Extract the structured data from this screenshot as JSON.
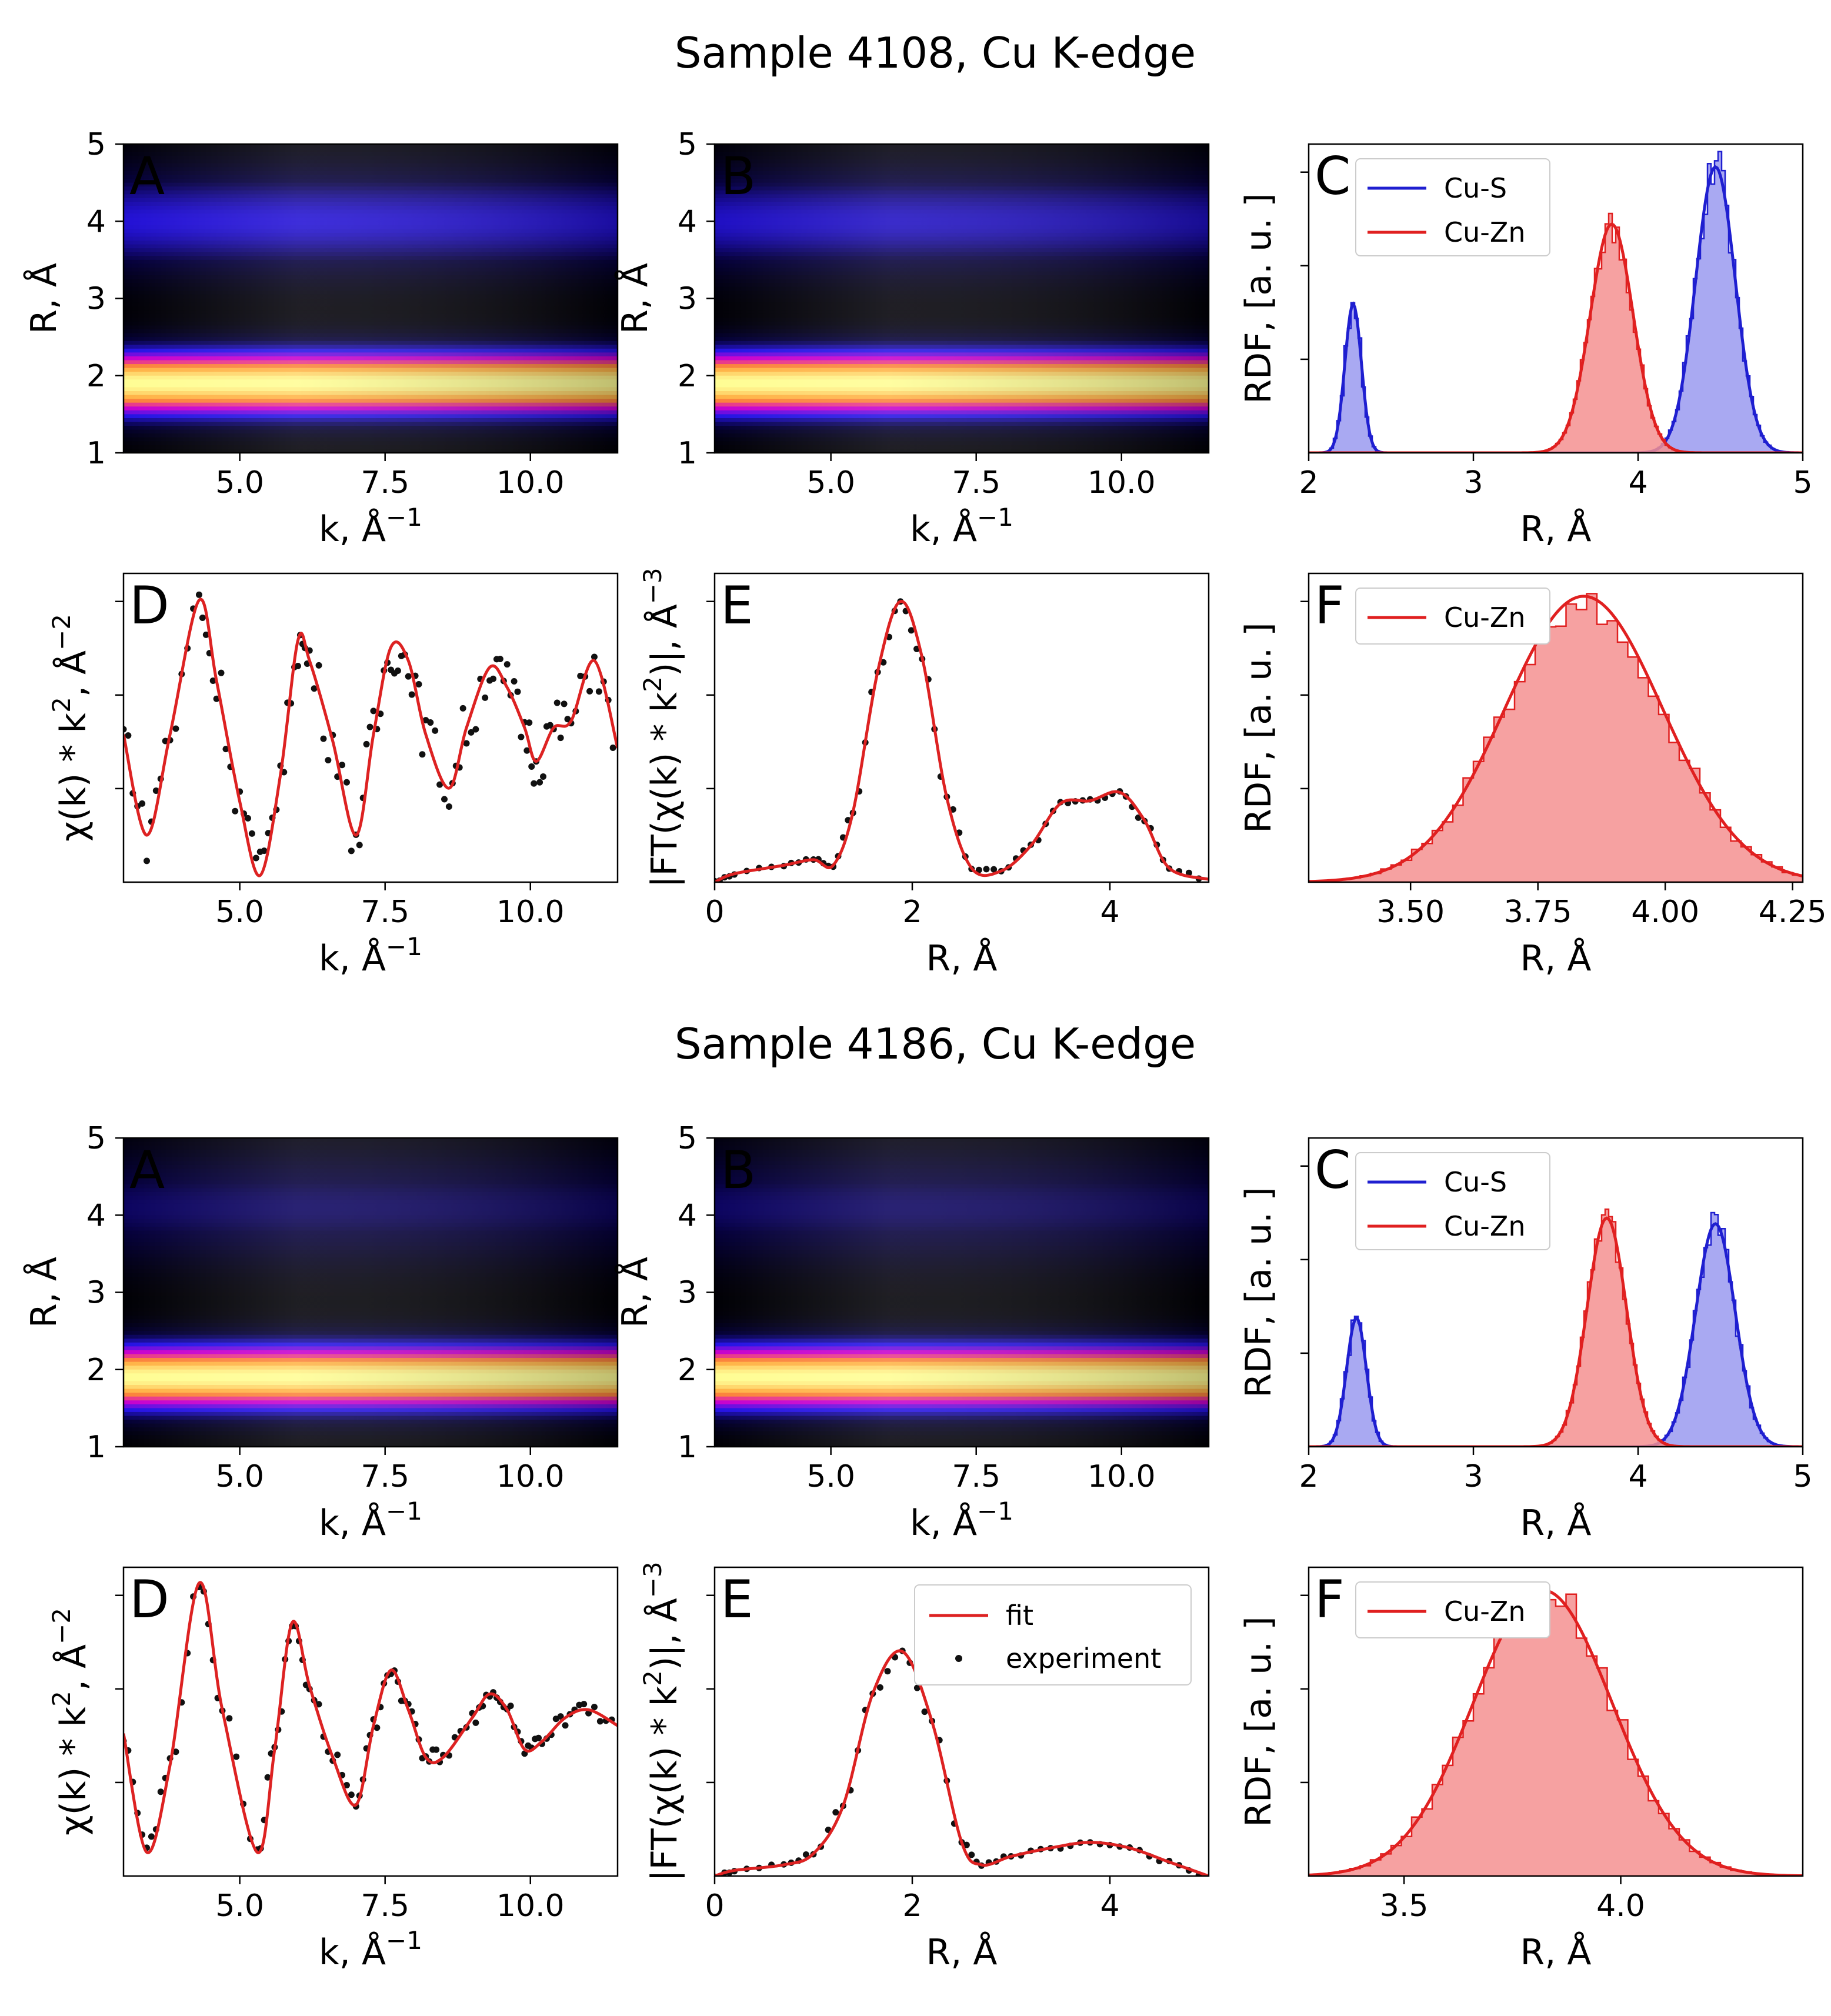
{
  "figure": {
    "sections": [
      {
        "title": "Sample 4108, Cu K-edge"
      },
      {
        "title": "Sample 4186, Cu K-edge"
      }
    ],
    "axis_text": {
      "k_label": "k,  Å",
      "k_exp": "−1",
      "R_label": "R,  Å",
      "R_short": "R, Å",
      "rdf_label": "RDF, [a. u. ]",
      "chi_label": "χ(k) * k",
      "chi_exp": "2",
      "chi_sep": ", Å",
      "chi_exp2": "−2",
      "ft_label": "|FT(χ(k) * k",
      "ft_exp": "2",
      "ft_sep": ")|, Å",
      "ft_exp2": "−3"
    },
    "legend_labels": {
      "cu_s": "Cu-S",
      "cu_zn": "Cu-Zn",
      "fit": "fit",
      "experiment": "experiment"
    },
    "colors": {
      "fit": "#dd2222",
      "experiment": "#111111",
      "cu_s": "#1f1fd0",
      "cu_s_fill": "#9a9af0",
      "cu_zn": "#e02020",
      "cu_zn_fill": "#f49090",
      "panel_letter_map": "#e8141e",
      "panel_letter_plot": "#000000"
    }
  },
  "chart_data": [
    {
      "id": "s1_A",
      "section": 0,
      "letter": "A",
      "type": "heatmap",
      "xlim": [
        3,
        11.5
      ],
      "ylim": [
        1,
        5
      ],
      "xticks": [
        "5.0",
        "7.5",
        "10.0"
      ],
      "yticks": [
        "1",
        "2",
        "3",
        "4",
        "5"
      ],
      "peaks": [
        {
          "R": 1.9,
          "width": 0.3,
          "amp": 1.0
        },
        {
          "R": 4.0,
          "width": 0.45,
          "amp": 0.35
        }
      ],
      "xlabel": "k_label",
      "ylabel": "R_short"
    },
    {
      "id": "s1_B",
      "section": 0,
      "letter": "B",
      "type": "heatmap",
      "xlim": [
        3,
        11.5
      ],
      "ylim": [
        1,
        5
      ],
      "xticks": [
        "5.0",
        "7.5",
        "10.0"
      ],
      "yticks": [
        "1",
        "2",
        "3",
        "4",
        "5"
      ],
      "peaks": [
        {
          "R": 1.9,
          "width": 0.3,
          "amp": 1.0
        },
        {
          "R": 4.0,
          "width": 0.45,
          "amp": 0.33
        }
      ]
    },
    {
      "id": "s1_C",
      "section": 0,
      "letter": "C",
      "type": "area",
      "xlim": [
        2,
        5
      ],
      "xticks": [
        "2",
        "3",
        "4",
        "5"
      ],
      "series": [
        {
          "name": "Cu-S",
          "peaks": [
            {
              "center": 2.27,
              "sigma": 0.05,
              "height": 0.52
            },
            {
              "center": 4.47,
              "sigma": 0.12,
              "height": 1.0
            }
          ]
        },
        {
          "name": "Cu-Zn",
          "peaks": [
            {
              "center": 3.84,
              "sigma": 0.13,
              "height": 0.8
            }
          ]
        }
      ]
    },
    {
      "id": "s1_D",
      "section": 0,
      "letter": "D",
      "type": "line",
      "xlim": [
        3,
        11.5
      ],
      "xticks": [
        "5.0",
        "7.5",
        "10.0"
      ],
      "points": [
        [
          3.0,
          -0.2
        ],
        [
          3.4,
          -1.7
        ],
        [
          3.8,
          -0.2
        ],
        [
          4.3,
          1.8
        ],
        [
          4.6,
          0.6
        ],
        [
          5.0,
          -1.2
        ],
        [
          5.35,
          -2.3
        ],
        [
          5.7,
          -0.8
        ],
        [
          6.0,
          1.2
        ],
        [
          6.2,
          0.9
        ],
        [
          6.6,
          -0.3
        ],
        [
          7.0,
          -1.7
        ],
        [
          7.3,
          -0.2
        ],
        [
          7.6,
          1.1
        ],
        [
          7.9,
          0.9
        ],
        [
          8.2,
          -0.2
        ],
        [
          8.6,
          -1.0
        ],
        [
          8.9,
          -0.1
        ],
        [
          9.3,
          0.8
        ],
        [
          9.6,
          0.5
        ],
        [
          9.9,
          -0.1
        ],
        [
          10.1,
          -0.6
        ],
        [
          10.4,
          -0.1
        ],
        [
          10.7,
          0.0
        ],
        [
          11.1,
          0.9
        ],
        [
          11.5,
          -0.4
        ]
      ],
      "ylim": [
        -2.4,
        2.2
      ]
    },
    {
      "id": "s1_E",
      "section": 0,
      "letter": "E",
      "type": "line",
      "xlim": [
        0,
        5
      ],
      "xticks": [
        "0",
        "2",
        "4"
      ],
      "points": [
        [
          0.0,
          0.0
        ],
        [
          0.2,
          0.03
        ],
        [
          0.7,
          0.06
        ],
        [
          1.0,
          0.08
        ],
        [
          1.2,
          0.06
        ],
        [
          1.4,
          0.25
        ],
        [
          1.65,
          0.75
        ],
        [
          1.88,
          1.0
        ],
        [
          2.1,
          0.8
        ],
        [
          2.35,
          0.3
        ],
        [
          2.6,
          0.05
        ],
        [
          2.9,
          0.04
        ],
        [
          3.2,
          0.13
        ],
        [
          3.5,
          0.28
        ],
        [
          3.8,
          0.29
        ],
        [
          4.1,
          0.32
        ],
        [
          4.35,
          0.22
        ],
        [
          4.6,
          0.05
        ],
        [
          5.0,
          0.01
        ]
      ],
      "ylim": [
        0,
        1.1
      ]
    },
    {
      "id": "s1_F",
      "section": 0,
      "letter": "F",
      "type": "area",
      "xlim": [
        3.3,
        4.27
      ],
      "xticks": [
        "3.50",
        "3.75",
        "4.00",
        "4.25"
      ],
      "series": [
        {
          "name": "Cu-Zn",
          "peaks": [
            {
              "center": 3.84,
              "sigma": 0.155,
              "height": 1.0
            }
          ]
        }
      ]
    },
    {
      "id": "s2_A",
      "section": 1,
      "letter": "A",
      "type": "heatmap",
      "xlim": [
        3,
        11.5
      ],
      "ylim": [
        1,
        5
      ],
      "xticks": [
        "5.0",
        "7.5",
        "10.0"
      ],
      "yticks": [
        "1",
        "2",
        "3",
        "4",
        "5"
      ],
      "peaks": [
        {
          "R": 1.9,
          "width": 0.3,
          "amp": 1.0
        },
        {
          "R": 4.1,
          "width": 0.5,
          "amp": 0.22
        }
      ]
    },
    {
      "id": "s2_B",
      "section": 1,
      "letter": "B",
      "type": "heatmap",
      "xlim": [
        3,
        11.5
      ],
      "ylim": [
        1,
        5
      ],
      "xticks": [
        "5.0",
        "7.5",
        "10.0"
      ],
      "yticks": [
        "1",
        "2",
        "3",
        "4",
        "5"
      ],
      "peaks": [
        {
          "R": 1.9,
          "width": 0.3,
          "amp": 1.0
        },
        {
          "R": 4.1,
          "width": 0.5,
          "amp": 0.22
        }
      ]
    },
    {
      "id": "s2_C",
      "section": 1,
      "letter": "C",
      "type": "area",
      "xlim": [
        2,
        5
      ],
      "xticks": [
        "2",
        "3",
        "4",
        "5"
      ],
      "series": [
        {
          "name": "Cu-S",
          "peaks": [
            {
              "center": 2.29,
              "sigma": 0.06,
              "height": 0.45
            },
            {
              "center": 4.47,
              "sigma": 0.12,
              "height": 0.78
            }
          ]
        },
        {
          "name": "Cu-Zn",
          "peaks": [
            {
              "center": 3.81,
              "sigma": 0.12,
              "height": 0.8
            }
          ]
        }
      ]
    },
    {
      "id": "s2_D",
      "section": 1,
      "letter": "D",
      "type": "line",
      "xlim": [
        3,
        11.5
      ],
      "xticks": [
        "5.0",
        "7.5",
        "10.0"
      ],
      "points": [
        [
          3.0,
          -0.1
        ],
        [
          3.4,
          -1.6
        ],
        [
          3.8,
          -0.5
        ],
        [
          4.3,
          1.8
        ],
        [
          4.7,
          0.2
        ],
        [
          5.3,
          -1.6
        ],
        [
          5.6,
          -0.3
        ],
        [
          5.9,
          1.3
        ],
        [
          6.2,
          0.5
        ],
        [
          6.6,
          -0.4
        ],
        [
          7.0,
          -1.0
        ],
        [
          7.3,
          0.0
        ],
        [
          7.6,
          0.7
        ],
        [
          7.9,
          0.2
        ],
        [
          8.2,
          -0.4
        ],
        [
          8.5,
          -0.4
        ],
        [
          9.0,
          0.1
        ],
        [
          9.3,
          0.4
        ],
        [
          9.6,
          0.2
        ],
        [
          9.9,
          -0.3
        ],
        [
          10.2,
          -0.2
        ],
        [
          10.6,
          0.1
        ],
        [
          11.0,
          0.2
        ],
        [
          11.5,
          0.0
        ]
      ],
      "ylim": [
        -1.9,
        2.0
      ]
    },
    {
      "id": "s2_E",
      "section": 1,
      "letter": "E",
      "type": "line",
      "xlim": [
        0,
        5
      ],
      "xticks": [
        "0",
        "2",
        "4"
      ],
      "points": [
        [
          0.0,
          0.0
        ],
        [
          0.2,
          0.02
        ],
        [
          0.7,
          0.04
        ],
        [
          1.0,
          0.08
        ],
        [
          1.3,
          0.25
        ],
        [
          1.6,
          0.65
        ],
        [
          1.9,
          0.8
        ],
        [
          2.2,
          0.55
        ],
        [
          2.5,
          0.12
        ],
        [
          2.7,
          0.04
        ],
        [
          3.0,
          0.07
        ],
        [
          3.4,
          0.1
        ],
        [
          3.8,
          0.12
        ],
        [
          4.2,
          0.1
        ],
        [
          4.6,
          0.05
        ],
        [
          5.0,
          0.0
        ]
      ],
      "ylim": [
        0,
        1.1
      ],
      "legend": true
    },
    {
      "id": "s2_F",
      "section": 1,
      "letter": "F",
      "type": "area",
      "xlim": [
        3.28,
        4.42
      ],
      "xticks": [
        "3.5",
        "4.0"
      ],
      "series": [
        {
          "name": "Cu-Zn",
          "peaks": [
            {
              "center": 3.82,
              "sigma": 0.16,
              "height": 1.0
            }
          ]
        }
      ]
    }
  ]
}
